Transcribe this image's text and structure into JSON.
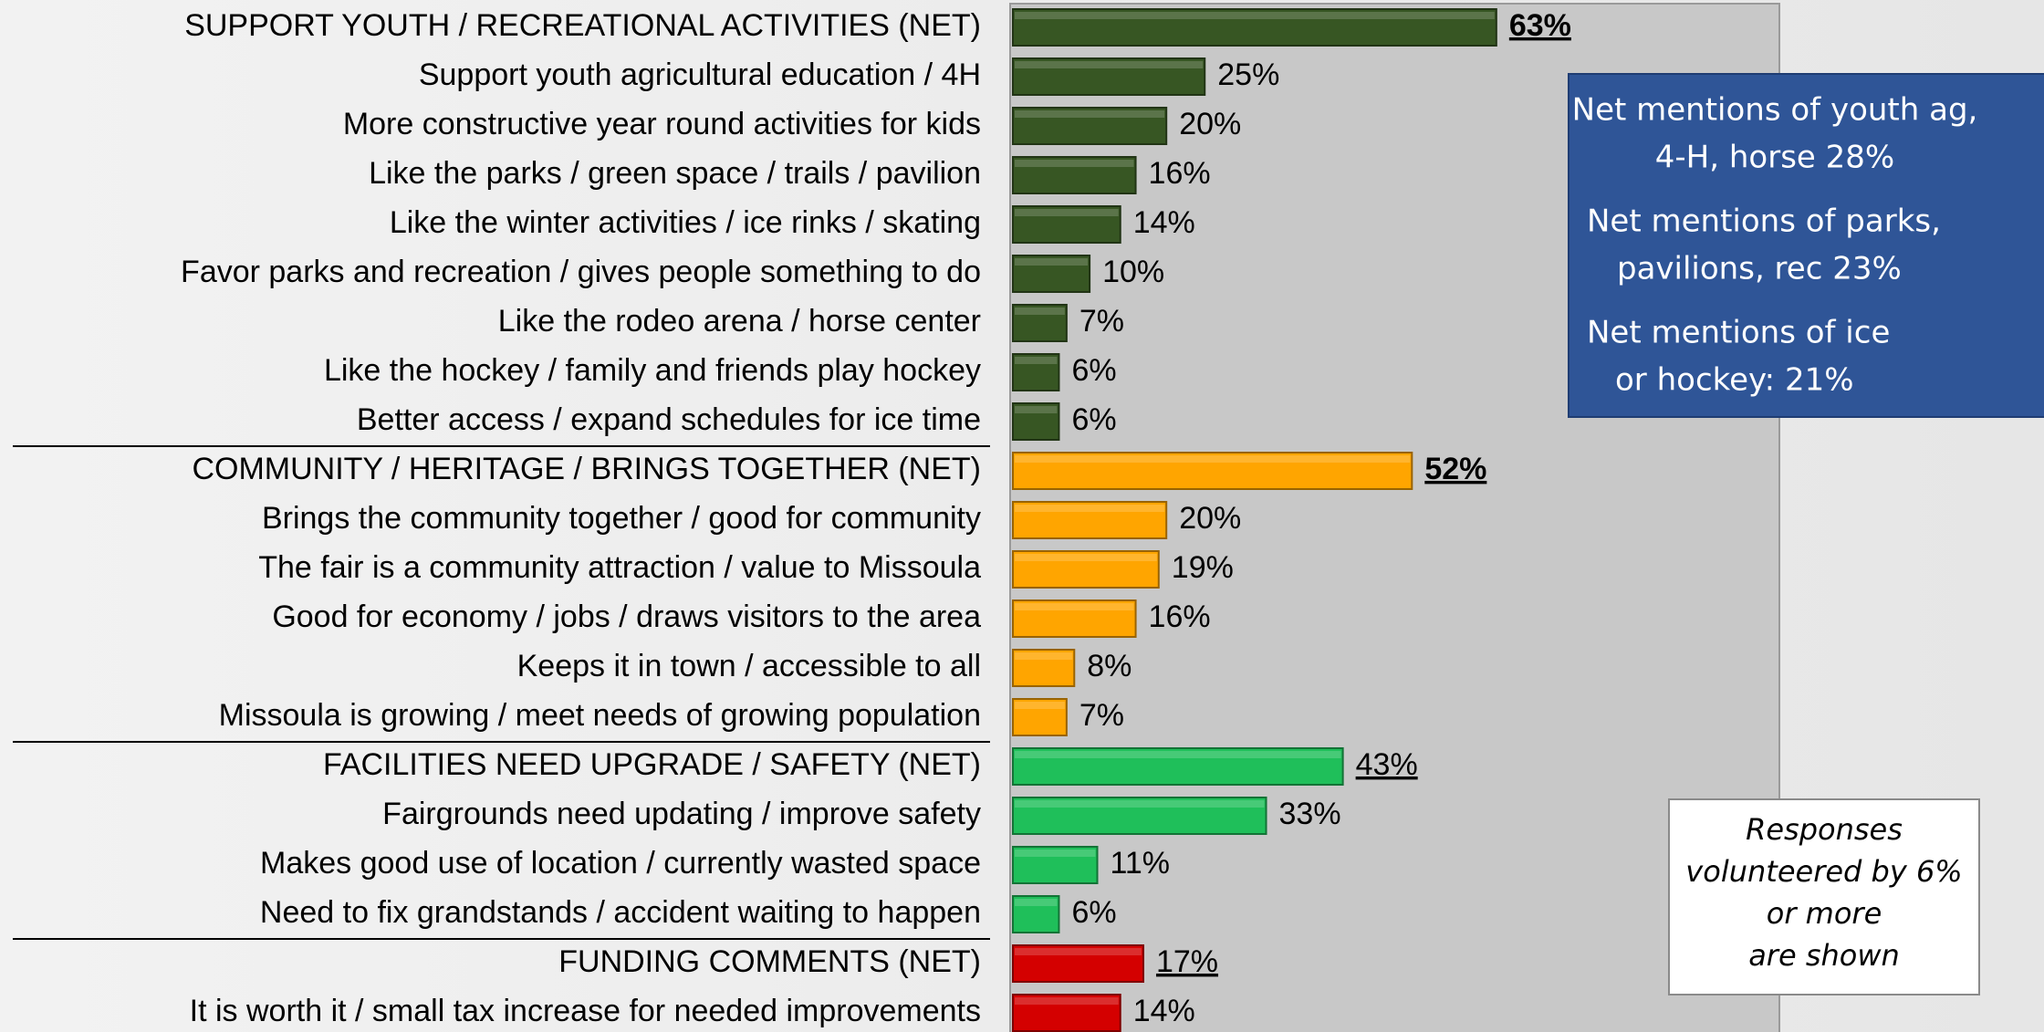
{
  "chart_data": {
    "type": "bar",
    "categories": [
      "SUPPORT YOUTH / RECREATIONAL ACTIVITIES (NET)",
      "Support youth agricultural education / 4H",
      "More constructive year round activities for kids",
      "Like the parks / green space / trails / pavilion",
      "Like the winter activities / ice rinks / skating",
      "Favor parks and recreation / gives people something to do",
      "Like the rodeo arena / horse center",
      "Like the hockey / family and friends play hockey",
      "Better access / expand schedules for ice time",
      "COMMUNITY / HERITAGE / BRINGS TOGETHER (NET)",
      "Brings the community together / good for community",
      "The fair is a community attraction / value to Missoula",
      "Good for economy / jobs / draws visitors to the area",
      "Keeps it in town / accessible to all",
      "Missoula is growing / meet needs of growing population",
      "FACILITIES NEED UPGRADE / SAFETY (NET)",
      "Fairgrounds need updating / improve safety",
      "Makes good use of location / currently wasted space",
      "Need to fix grandstands / accident waiting to happen",
      "FUNDING COMMENTS (NET)",
      "It is worth it / small tax increase for needed improvements"
    ],
    "values": [
      63,
      25,
      20,
      16,
      14,
      10,
      7,
      6,
      6,
      52,
      20,
      19,
      16,
      8,
      7,
      43,
      33,
      11,
      6,
      17,
      14
    ],
    "value_labels": [
      "63%",
      "25%",
      "20%",
      "16%",
      "14%",
      "10%",
      "7%",
      "6%",
      "6%",
      "52%",
      "20%",
      "19%",
      "16%",
      "8%",
      "7%",
      "43%",
      "33%",
      "11%",
      "6%",
      "17%",
      "14%"
    ],
    "colors": [
      "#375623",
      "#375623",
      "#375623",
      "#375623",
      "#375623",
      "#375623",
      "#375623",
      "#375623",
      "#375623",
      "#ffa500",
      "#ffa500",
      "#ffa500",
      "#ffa500",
      "#ffa500",
      "#ffa500",
      "#1fbf5a",
      "#1fbf5a",
      "#1fbf5a",
      "#1fbf5a",
      "#d40000",
      "#d40000"
    ],
    "annotations": [
      [
        "Net mentions of youth ag,",
        "4-H, horse 28%",
        "Net mentions of parks,",
        "pavilions, rec  23%",
        "Net mentions of ice",
        "or hockey:  21%"
      ],
      [
        "Responses",
        "volunteered by 6%",
        "or more",
        "are shown"
      ]
    ]
  }
}
